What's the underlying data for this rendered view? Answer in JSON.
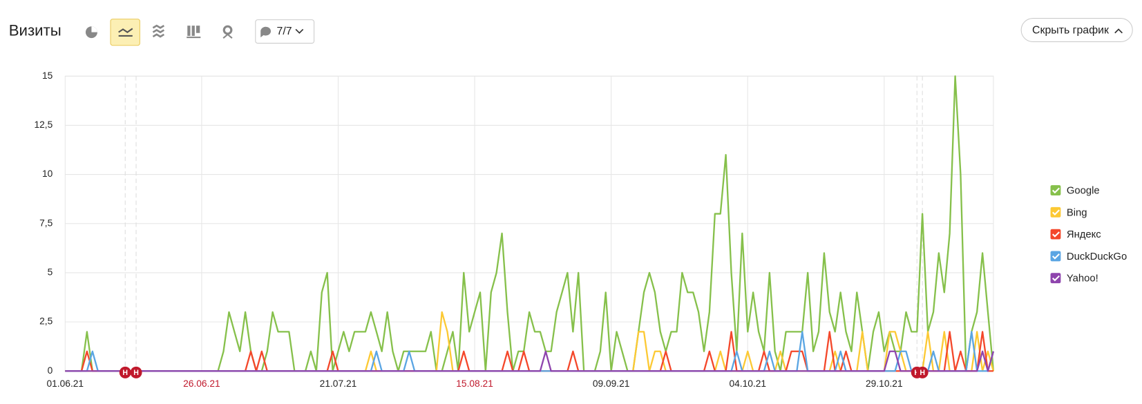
{
  "toolbar": {
    "title": "Визиты",
    "filter_count": "7/7",
    "hide_button": "Скрыть график"
  },
  "chart_data": {
    "type": "line",
    "categories": [
      "01.06.21",
      null,
      null,
      null,
      null,
      null,
      null,
      null,
      null,
      null,
      null,
      null,
      null,
      null,
      null,
      null,
      null,
      null,
      null,
      null,
      null,
      null,
      null,
      null,
      null,
      "26.06.21",
      null,
      null,
      null,
      null,
      null,
      null,
      null,
      null,
      null,
      null,
      null,
      null,
      null,
      null,
      null,
      null,
      null,
      null,
      null,
      null,
      null,
      null,
      null,
      null,
      "21.07.21",
      null,
      null,
      null,
      null,
      null,
      null,
      null,
      null,
      null,
      null,
      null,
      null,
      null,
      null,
      null,
      null,
      null,
      null,
      null,
      null,
      null,
      null,
      null,
      null,
      "15.08.21",
      null,
      null,
      null,
      null,
      null,
      null,
      null,
      null,
      null,
      null,
      null,
      null,
      null,
      null,
      null,
      null,
      null,
      null,
      null,
      null,
      null,
      null,
      null,
      null,
      "09.09.21",
      null,
      null,
      null,
      null,
      null,
      null,
      null,
      null,
      null,
      null,
      null,
      null,
      null,
      null,
      null,
      null,
      null,
      null,
      null,
      null,
      null,
      null,
      null,
      null,
      "04.10.21",
      null,
      null,
      null,
      null,
      null,
      null,
      null,
      null,
      null,
      null,
      null,
      null,
      null,
      null,
      null,
      null,
      null,
      null,
      null,
      null,
      null,
      null,
      null,
      null,
      "29.10.21",
      null,
      null,
      null,
      null,
      null,
      null,
      null,
      null,
      null,
      null,
      null,
      null,
      null,
      null,
      null,
      null,
      null,
      null,
      null,
      null
    ],
    "series": [
      {
        "name": "Google",
        "color": "#86c04b",
        "values": [
          0,
          0,
          0,
          0,
          2,
          0,
          0,
          0,
          0,
          0,
          0,
          0,
          0,
          0,
          0,
          0,
          0,
          0,
          0,
          0,
          0,
          0,
          0,
          0,
          0,
          0,
          0,
          0,
          0,
          1,
          3,
          2,
          1,
          3,
          1,
          0,
          0,
          1,
          3,
          2,
          2,
          2,
          0,
          0,
          0,
          1,
          0,
          4,
          5,
          0,
          1,
          2,
          1,
          2,
          2,
          2,
          3,
          2,
          1,
          3,
          1,
          0,
          1,
          1,
          1,
          1,
          1,
          2,
          0,
          0,
          1,
          2,
          0,
          5,
          2,
          3,
          4,
          0,
          4,
          5,
          7,
          3,
          0,
          1,
          1,
          3,
          2,
          2,
          1,
          1,
          3,
          4,
          5,
          2,
          5,
          0,
          0,
          0,
          1,
          4,
          0,
          2,
          1,
          0,
          0,
          2,
          4,
          5,
          4,
          2,
          1,
          2,
          2,
          5,
          4,
          4,
          3,
          1,
          3,
          8,
          8,
          11,
          5,
          1,
          7,
          2,
          4,
          2,
          1,
          5,
          1,
          0,
          2,
          2,
          2,
          2,
          5,
          1,
          2,
          6,
          3,
          2,
          4,
          2,
          1,
          4,
          2,
          0,
          2,
          3,
          1,
          2,
          1,
          1,
          3,
          2,
          2,
          8,
          2,
          3,
          6,
          4,
          7,
          15,
          10,
          0,
          2,
          3,
          6,
          3,
          0
        ]
      },
      {
        "name": "Bing",
        "color": "#fcc934",
        "values": [
          0,
          0,
          0,
          0,
          0,
          0,
          0,
          0,
          0,
          0,
          0,
          0,
          0,
          0,
          0,
          0,
          0,
          0,
          0,
          0,
          0,
          0,
          0,
          0,
          0,
          0,
          0,
          0,
          0,
          0,
          0,
          0,
          0,
          0,
          0,
          0,
          0,
          0,
          0,
          0,
          0,
          0,
          0,
          0,
          0,
          0,
          0,
          0,
          0,
          0,
          0,
          0,
          0,
          0,
          0,
          0,
          1,
          0,
          0,
          0,
          0,
          0,
          0,
          0,
          0,
          0,
          0,
          0,
          0,
          3,
          2,
          0,
          0,
          0,
          0,
          0,
          0,
          0,
          0,
          0,
          0,
          0,
          0,
          0,
          0,
          0,
          0,
          0,
          0,
          0,
          0,
          0,
          0,
          0,
          0,
          0,
          0,
          0,
          0,
          0,
          0,
          0,
          0,
          0,
          0,
          2,
          2,
          0,
          1,
          1,
          0,
          0,
          0,
          0,
          0,
          0,
          0,
          0,
          0,
          0,
          1,
          0,
          0,
          0,
          0,
          1,
          0,
          0,
          0,
          0,
          0,
          1,
          0,
          0,
          0,
          0,
          0,
          0,
          0,
          0,
          0,
          1,
          0,
          0,
          0,
          0,
          2,
          0,
          0,
          0,
          0,
          2,
          2,
          1,
          0,
          0,
          0,
          0,
          2,
          0,
          0,
          2,
          0,
          0,
          0,
          0,
          0,
          2,
          0,
          1,
          0
        ]
      },
      {
        "name": "Яндекс",
        "color": "#f4472a",
        "values": [
          0,
          0,
          0,
          0,
          1,
          0,
          0,
          0,
          0,
          0,
          0,
          0,
          0,
          0,
          0,
          0,
          0,
          0,
          0,
          0,
          0,
          0,
          0,
          0,
          0,
          0,
          0,
          0,
          0,
          0,
          0,
          0,
          0,
          0,
          1,
          0,
          1,
          0,
          0,
          0,
          0,
          0,
          0,
          0,
          0,
          0,
          0,
          0,
          0,
          1,
          0,
          0,
          0,
          0,
          0,
          0,
          0,
          0,
          0,
          0,
          0,
          0,
          0,
          0,
          0,
          0,
          0,
          0,
          0,
          0,
          0,
          0,
          0,
          1,
          0,
          0,
          0,
          0,
          0,
          0,
          0,
          1,
          0,
          0,
          1,
          0,
          0,
          0,
          0,
          0,
          0,
          0,
          0,
          1,
          0,
          0,
          0,
          0,
          0,
          0,
          0,
          0,
          0,
          0,
          0,
          0,
          0,
          0,
          0,
          0,
          1,
          0,
          0,
          0,
          0,
          0,
          0,
          0,
          1,
          0,
          0,
          0,
          2,
          0,
          0,
          0,
          0,
          0,
          1,
          0,
          0,
          0,
          0,
          1,
          1,
          1,
          0,
          0,
          0,
          0,
          2,
          0,
          0,
          1,
          0,
          0,
          0,
          0,
          0,
          0,
          0,
          0,
          0,
          0,
          0,
          0,
          0,
          0,
          0,
          0,
          0,
          0,
          2,
          0,
          1,
          0,
          0,
          0,
          2,
          0,
          0
        ]
      },
      {
        "name": "DuckDuckGo",
        "color": "#5aa5e3",
        "values": [
          0,
          0,
          0,
          0,
          0,
          1,
          0,
          0,
          0,
          0,
          0,
          0,
          0,
          0,
          0,
          0,
          0,
          0,
          0,
          0,
          0,
          0,
          0,
          0,
          0,
          0,
          0,
          0,
          0,
          0,
          0,
          0,
          0,
          0,
          0,
          0,
          0,
          0,
          0,
          0,
          0,
          0,
          0,
          0,
          0,
          0,
          0,
          0,
          0,
          0,
          0,
          0,
          0,
          0,
          0,
          0,
          0,
          1,
          0,
          0,
          0,
          0,
          0,
          1,
          0,
          0,
          0,
          0,
          0,
          0,
          0,
          0,
          0,
          0,
          0,
          0,
          0,
          0,
          0,
          0,
          0,
          0,
          0,
          0,
          0,
          0,
          0,
          0,
          0,
          0,
          0,
          0,
          0,
          0,
          0,
          0,
          0,
          0,
          0,
          0,
          0,
          0,
          0,
          0,
          0,
          0,
          0,
          0,
          0,
          0,
          0,
          0,
          0,
          0,
          0,
          0,
          0,
          0,
          0,
          0,
          0,
          0,
          0,
          1,
          0,
          0,
          0,
          0,
          0,
          1,
          0,
          0,
          0,
          0,
          0,
          2,
          0,
          0,
          0,
          0,
          0,
          0,
          1,
          0,
          0,
          0,
          0,
          0,
          0,
          0,
          0,
          0,
          0,
          1,
          1,
          0,
          0,
          0,
          0,
          1,
          0,
          0,
          0,
          0,
          0,
          0,
          2,
          0,
          0,
          0,
          1
        ]
      },
      {
        "name": "Yahoo!",
        "color": "#8e44ad",
        "values": [
          0,
          0,
          0,
          0,
          0,
          0,
          0,
          0,
          0,
          0,
          0,
          0,
          0,
          0,
          0,
          0,
          0,
          0,
          0,
          0,
          0,
          0,
          0,
          0,
          0,
          0,
          0,
          0,
          0,
          0,
          0,
          0,
          0,
          0,
          0,
          0,
          0,
          0,
          0,
          0,
          0,
          0,
          0,
          0,
          0,
          0,
          0,
          0,
          0,
          0,
          0,
          0,
          0,
          0,
          0,
          0,
          0,
          0,
          0,
          0,
          0,
          0,
          0,
          0,
          0,
          0,
          0,
          0,
          0,
          0,
          0,
          0,
          0,
          0,
          0,
          0,
          0,
          0,
          0,
          0,
          0,
          0,
          0,
          0,
          0,
          0,
          0,
          0,
          1,
          0,
          0,
          0,
          0,
          0,
          0,
          0,
          0,
          0,
          0,
          0,
          0,
          0,
          0,
          0,
          0,
          0,
          0,
          0,
          0,
          0,
          0,
          0,
          0,
          0,
          0,
          0,
          0,
          0,
          0,
          0,
          0,
          0,
          0,
          0,
          0,
          0,
          0,
          0,
          0,
          0,
          0,
          0,
          0,
          0,
          0,
          0,
          0,
          0,
          0,
          0,
          0,
          0,
          0,
          0,
          0,
          0,
          0,
          0,
          0,
          0,
          0,
          1,
          1,
          0,
          0,
          0,
          0,
          0,
          0,
          0,
          0,
          0,
          0,
          0,
          0,
          0,
          0,
          0,
          1,
          0,
          1
        ]
      }
    ],
    "ylim": [
      0,
      15
    ],
    "yticks": [
      0,
      {
        "value": 2.5,
        "label": "2,5"
      },
      5,
      {
        "value": 7.5,
        "label": "7,5"
      },
      10,
      {
        "value": 12.5,
        "label": "12,5"
      },
      15
    ],
    "grid": true,
    "legend": "right",
    "annotations": [
      {
        "text": "Н",
        "x": 11
      },
      {
        "text": "Н",
        "x": 13
      },
      {
        "text": "Н",
        "x": 156
      },
      {
        "text": "Н",
        "x": 157
      }
    ]
  }
}
